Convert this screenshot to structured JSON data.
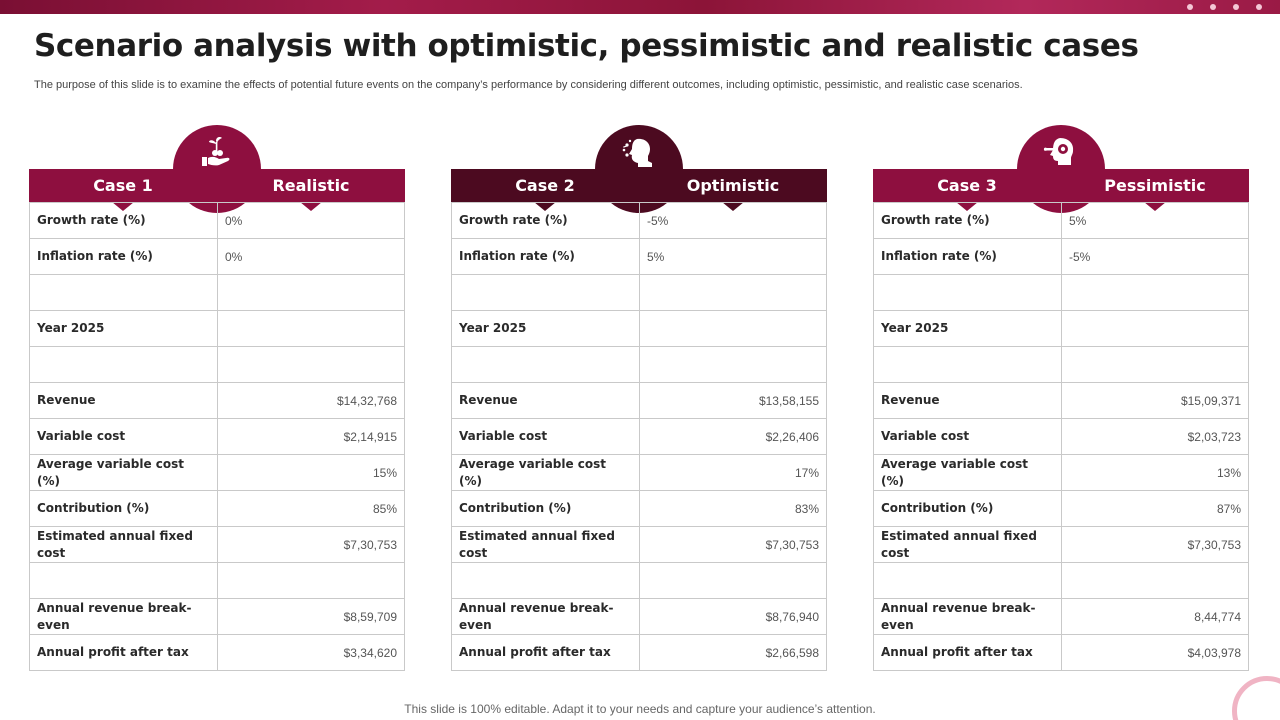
{
  "slide": {
    "title": "Scenario analysis with optimistic, pessimistic and realistic cases",
    "subtitle": "The purpose of this slide is to examine the effects of potential future events on the company’s performance by considering different outcomes, including optimistic, pessimistic, and realistic case scenarios.",
    "footer": "This slide is 100% editable. Adapt it to your needs and capture your audience’s attention."
  },
  "colors": {
    "accent": "#8e0f3f",
    "accent_dark": "#4c0a20",
    "border": "#c9c9c9"
  },
  "cases": [
    {
      "case_label": "Case 1",
      "scenario_label": "Realistic",
      "icon": "plant-hand-icon",
      "rows": [
        {
          "label": "Growth rate (%)",
          "value": "0%"
        },
        {
          "label": "Inflation rate (%)",
          "value": "0%"
        },
        {
          "label": "",
          "value": ""
        },
        {
          "label": "Year 2025",
          "value": ""
        },
        {
          "label": "",
          "value": ""
        },
        {
          "label": "Revenue",
          "value": "$14,32,768"
        },
        {
          "label": "Variable cost",
          "value": "$2,14,915"
        },
        {
          "label": "Average variable cost (%)",
          "value": "15%"
        },
        {
          "label": "Contribution (%)",
          "value": "85%"
        },
        {
          "label": "Estimated annual fixed cost",
          "value": "$7,30,753"
        },
        {
          "label": "",
          "value": ""
        },
        {
          "label": "Annual revenue break-even",
          "value": "$8,59,709"
        },
        {
          "label": "Annual profit after tax",
          "value": "$3,34,620"
        }
      ]
    },
    {
      "case_label": "Case 2",
      "scenario_label": "Optimistic",
      "icon": "head-ideas-icon",
      "rows": [
        {
          "label": "Growth rate (%)",
          "value": "-5%"
        },
        {
          "label": "Inflation rate (%)",
          "value": "5%"
        },
        {
          "label": "",
          "value": ""
        },
        {
          "label": "Year 2025",
          "value": ""
        },
        {
          "label": "",
          "value": ""
        },
        {
          "label": "Revenue",
          "value": "$13,58,155"
        },
        {
          "label": "Variable cost",
          "value": "$2,26,406"
        },
        {
          "label": "Average variable cost (%)",
          "value": "17%"
        },
        {
          "label": "Contribution (%)",
          "value": "83%"
        },
        {
          "label": "Estimated annual fixed cost",
          "value": "$7,30,753"
        },
        {
          "label": "",
          "value": ""
        },
        {
          "label": "Annual revenue break-even",
          "value": "$8,76,940"
        },
        {
          "label": "Annual profit after tax",
          "value": "$2,66,598"
        }
      ]
    },
    {
      "case_label": "Case 3",
      "scenario_label": "Pessimistic",
      "icon": "head-gear-icon",
      "rows": [
        {
          "label": "Growth rate (%)",
          "value": "5%"
        },
        {
          "label": "Inflation rate (%)",
          "value": "-5%"
        },
        {
          "label": "",
          "value": ""
        },
        {
          "label": "Year 2025",
          "value": ""
        },
        {
          "label": "",
          "value": ""
        },
        {
          "label": "Revenue",
          "value": "$15,09,371"
        },
        {
          "label": "Variable cost",
          "value": "$2,03,723"
        },
        {
          "label": "Average variable cost (%)",
          "value": "13%"
        },
        {
          "label": "Contribution (%)",
          "value": "87%"
        },
        {
          "label": "Estimated annual fixed cost",
          "value": "$7,30,753"
        },
        {
          "label": "",
          "value": ""
        },
        {
          "label": "Annual revenue break-even",
          "value": "8,44,774"
        },
        {
          "label": "Annual profit after tax",
          "value": "$4,03,978"
        }
      ]
    }
  ]
}
